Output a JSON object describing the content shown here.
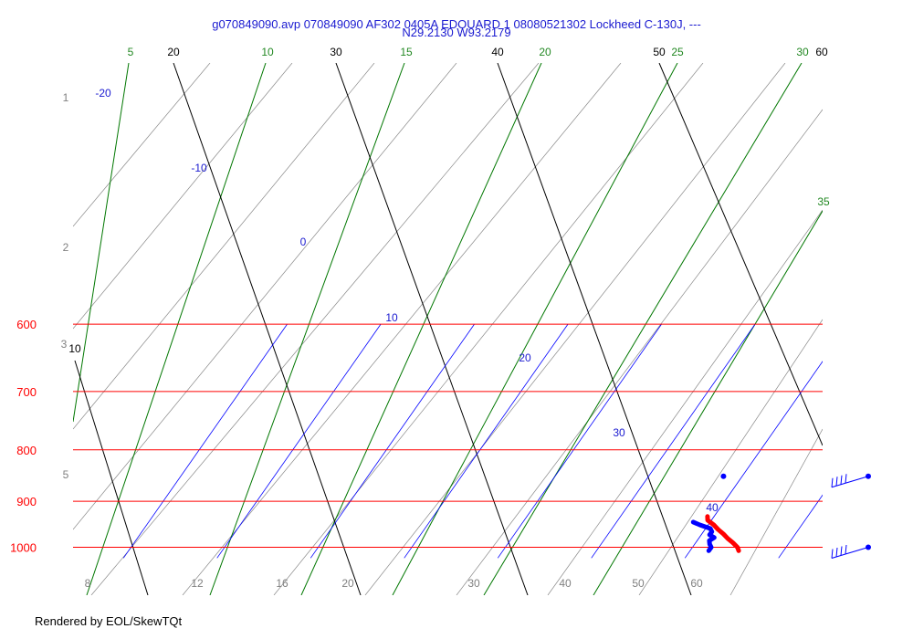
{
  "header": {
    "title_line1": "g070849090.avp 070849090 AF302 0405A EDOUARD 1 08080521302 Lockheed C-130J, ---",
    "title_line2": "N29.2130 W93.2179"
  },
  "footer": {
    "text": "Rendered by EOL/SkewTQt"
  },
  "colors": {
    "isobar": "#ff0000",
    "isotherm": "#0000ff",
    "dry_adiabat": "#000000",
    "moist_adiabat": "#007700",
    "mixing_ratio": "#888888",
    "temperature_trace": "#ff0000",
    "dewpoint_trace": "#0000ff",
    "wind_barb": "#0000ff"
  },
  "chart_data": {
    "type": "line",
    "title": "g070849090.avp 070849090 AF302 0405A EDOUARD 1 08080521302 Lockheed C-130J, ---",
    "subtitle": "N29.2130 W93.2179",
    "pressure_levels": [
      600,
      700,
      800,
      900,
      1000
    ],
    "pressure_labels": [
      "600",
      "700",
      "800",
      "900",
      "1000"
    ],
    "altitude_labels": [
      "1",
      "2",
      "3",
      "5"
    ],
    "isotherm_labels": [
      "-20",
      "-10",
      "0",
      "10",
      "20",
      "30",
      "40"
    ],
    "dry_adiabat_labels": [
      "20",
      "30",
      "40",
      "50",
      "60",
      "10"
    ],
    "moist_adiabat_labels": [
      "5",
      "10",
      "15",
      "20",
      "25",
      "30",
      "35"
    ],
    "mixing_ratio_labels": [
      "8",
      "12",
      "16",
      "20",
      "30",
      "40",
      "50",
      "60"
    ],
    "series": [
      {
        "name": "temperature",
        "points": [
          {
            "p": 1008,
            "t": 25.2
          },
          {
            "p": 1000,
            "t": 24.8
          },
          {
            "p": 990,
            "t": 24.0
          },
          {
            "p": 980,
            "t": 23.1
          },
          {
            "p": 970,
            "t": 22.3
          },
          {
            "p": 960,
            "t": 21.4
          },
          {
            "p": 950,
            "t": 20.6
          },
          {
            "p": 940,
            "t": 19.6
          },
          {
            "p": 932,
            "t": 19.3
          }
        ]
      },
      {
        "name": "dewpoint",
        "points": [
          {
            "p": 1008,
            "t": 22.0
          },
          {
            "p": 1000,
            "t": 22.0
          },
          {
            "p": 993,
            "t": 21.6
          },
          {
            "p": 985,
            "t": 21.3
          },
          {
            "p": 978,
            "t": 21.6
          },
          {
            "p": 972,
            "t": 20.9
          },
          {
            "p": 965,
            "t": 20.9
          },
          {
            "p": 958,
            "t": 20.5
          },
          {
            "p": 950,
            "t": 19.1
          },
          {
            "p": 944,
            "t": 18.2
          }
        ]
      }
    ],
    "isolated_point": {
      "p": 850,
      "t": 18.0
    },
    "wind_barbs": [
      {
        "p": 850,
        "direction": "east",
        "barbs": 4
      },
      {
        "p": 1000,
        "direction": "east",
        "barbs": 4
      }
    ],
    "ylim": [
      1025,
      600
    ],
    "grid": true
  }
}
